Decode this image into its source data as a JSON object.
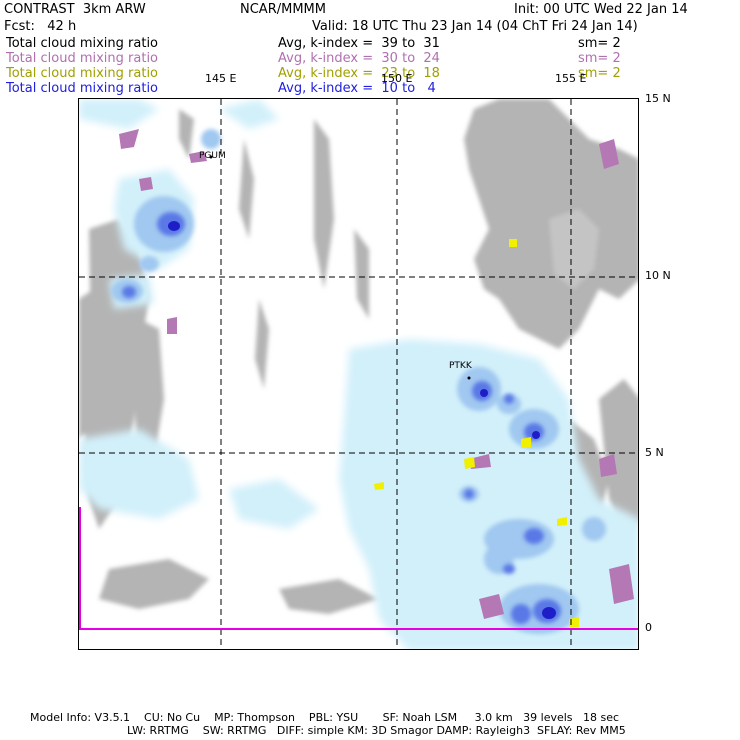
{
  "header": {
    "model": "CONTRAST  3km ARW",
    "center": "NCAR/MMMM",
    "init": "Init: 00 UTC Wed 22 Jan 14",
    "fcst": "Fcst:   42 h",
    "valid": "Valid: 18 UTC Thu 23 Jan 14 (04 ChT Fri 24 Jan 14)"
  },
  "legend": [
    {
      "field": "Total cloud mixing ratio",
      "avg": "Avg, k-index =  39 to  31",
      "sm": "sm= 2",
      "color": "#000000"
    },
    {
      "field": "Total cloud mixing ratio",
      "avg": "Avg, k-index =  30 to  24",
      "sm": "sm= 2",
      "color": "#b070b0"
    },
    {
      "field": "Total cloud mixing ratio",
      "avg": "Avg, k-index =  23 to  18",
      "sm": "sm= 2",
      "color": "#a0a000"
    },
    {
      "field": "Total cloud mixing ratio",
      "avg": "Avg, k-index =  10 to   4",
      "sm": "",
      "color": "#2020e0"
    }
  ],
  "lon_labels": [
    "145 E",
    "150 E",
    "155 E"
  ],
  "lat_labels": [
    "15 N",
    "10 N",
    "5 N",
    "0"
  ],
  "stations": [
    "PGUM",
    "PTKK"
  ],
  "footer": {
    "line1": "Model Info: V3.5.1    CU: No Cu    MP: Thompson    PBL: YSU       SF: Noah LSM     3.0 km   39 levels   18 sec",
    "line2": "LW: RRTMG    SW: RRTMG   DIFF: simple KM: 3D Smagor DAMP: Rayleigh3  SFLAY: Rev MM5"
  },
  "colors": {
    "gray_cloud": "#b4b4b4",
    "light_cyan": "#d2f0fa",
    "light_blue": "#a0c8f0",
    "blue": "#5a78e6",
    "dark_blue": "#1e1ec8",
    "purple": "#b478b4",
    "yellow": "#f0f000",
    "magenta_line": "#e600e6"
  }
}
